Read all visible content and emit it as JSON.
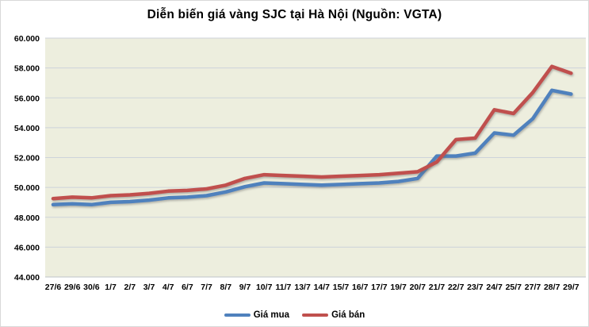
{
  "chart_data": {
    "type": "line",
    "title": "Diễn biến giá vàng SJC tại Hà Nội (Nguồn: VGTA)",
    "categories": [
      "27/6",
      "29/6",
      "30/6",
      "1/7",
      "2/7",
      "3/7",
      "4/7",
      "6/7",
      "7/7",
      "8/7",
      "9/7",
      "10/7",
      "11/7",
      "13/7",
      "14/7",
      "15/7",
      "16/7",
      "17/7",
      "19/7",
      "20/7",
      "21/7",
      "22/7",
      "23/7",
      "24/7",
      "25/7",
      "27/7",
      "28/7",
      "29/7"
    ],
    "series": [
      {
        "name": "Giá mua",
        "color": "#4F81BD",
        "values": [
          48.85,
          48.9,
          48.85,
          49.0,
          49.05,
          49.15,
          49.3,
          49.35,
          49.45,
          49.7,
          50.05,
          50.3,
          50.25,
          50.2,
          50.15,
          50.2,
          50.25,
          50.3,
          50.4,
          50.6,
          52.1,
          52.1,
          52.3,
          53.65,
          53.5,
          54.6,
          56.5,
          56.25
        ]
      },
      {
        "name": "Giá bán",
        "color": "#C0504D",
        "values": [
          49.25,
          49.35,
          49.3,
          49.45,
          49.5,
          49.6,
          49.75,
          49.8,
          49.9,
          50.15,
          50.6,
          50.85,
          50.8,
          50.75,
          50.7,
          50.75,
          50.8,
          50.85,
          50.95,
          51.05,
          51.7,
          53.2,
          53.3,
          55.2,
          54.95,
          56.35,
          58.1,
          57.65
        ]
      }
    ],
    "ylim": [
      44,
      60
    ],
    "ytick_step": 2,
    "ytick_labels": [
      "44.000",
      "46.000",
      "48.000",
      "50.000",
      "52.000",
      "54.000",
      "56.000",
      "58.000",
      "60.000"
    ],
    "xlabel": "",
    "ylabel": "",
    "grid": true,
    "legend_position": "bottom",
    "plot_bg": "#EDEEDE",
    "grid_color": "#CDD3DA",
    "axis_line_color": "#BFC4CA",
    "tick_label_color": "#000000"
  }
}
